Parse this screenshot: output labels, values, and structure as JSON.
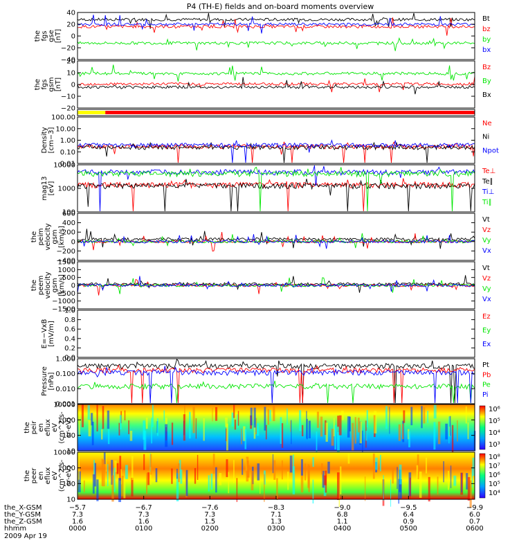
{
  "title": "P4 (TH-E) fields and on-board moments overview",
  "date": "2009 Apr 19",
  "colors": {
    "black": "#000000",
    "red": "#ff0000",
    "green": "#00e600",
    "blue": "#0000ff",
    "yellow": "#ffff00"
  },
  "chart_data": [
    {
      "type": "line",
      "ylabel": [
        "the",
        "fgs",
        "gse",
        "[nT]"
      ],
      "ylim": [
        -40,
        40
      ],
      "ticks": [
        "40",
        "20",
        "0",
        "−20",
        "−40"
      ],
      "series": [
        {
          "name": "Bt",
          "color": "black",
          "base": 28
        },
        {
          "name": "bz",
          "color": "red",
          "base": 16
        },
        {
          "name": "by",
          "color": "green",
          "base": -12
        },
        {
          "name": "bx",
          "color": "blue",
          "base": 20
        }
      ]
    },
    {
      "type": "line",
      "ylabel": [
        "the",
        "fgs",
        "gsm",
        "[nT]"
      ],
      "ylim": [
        -25,
        20
      ],
      "ticks": [
        "20",
        "10",
        "0",
        "−10",
        "−20"
      ],
      "series": [
        {
          "name": "Bz",
          "color": "red",
          "base": -2
        },
        {
          "name": "By",
          "color": "green",
          "base": 8
        },
        {
          "name": "Bx",
          "color": "black",
          "base": -5
        }
      ]
    },
    {
      "type": "bar",
      "ylabel": [],
      "note": "mode bar",
      "segments": [
        {
          "from": 0,
          "to": 0.07,
          "color": "yellow"
        },
        {
          "from": 0.07,
          "to": 1,
          "color": "red"
        }
      ]
    },
    {
      "type": "line",
      "ylabel": [
        "Density",
        "[cm−3]"
      ],
      "ylim": [
        0.01,
        100
      ],
      "scale": "log",
      "ticks": [
        "100.00",
        "10.00",
        "1.00",
        "0.10",
        "0.01"
      ],
      "series": [
        {
          "name": "Ne",
          "color": "red",
          "base": 0.3
        },
        {
          "name": "Ni",
          "color": "black",
          "base": 0.25
        },
        {
          "name": "Npot",
          "color": "blue",
          "base": 0.4
        }
      ]
    },
    {
      "type": "line",
      "ylabel": [
        "mag13",
        "[eV]"
      ],
      "ylim": [
        10,
        15000
      ],
      "scale": "log",
      "ticks": [
        "10000",
        "1000",
        "100"
      ],
      "series": [
        {
          "name": "Te⊥",
          "color": "red",
          "base": 700
        },
        {
          "name": "Te∥",
          "color": "black",
          "base": 600
        },
        {
          "name": "Ti⊥",
          "color": "blue",
          "base": 5000
        },
        {
          "name": "Ti∥",
          "color": "green",
          "base": 4000
        }
      ]
    },
    {
      "type": "line",
      "ylabel": [
        "the",
        "peim",
        "velocity",
        "gsm",
        "[km/s]"
      ],
      "ylim": [
        -400,
        600
      ],
      "ticks": [
        "600",
        "400",
        "200",
        "0",
        "−200",
        "−400"
      ],
      "series": [
        {
          "name": "Vt",
          "color": "black",
          "base": 50
        },
        {
          "name": "Vz",
          "color": "red",
          "base": 0
        },
        {
          "name": "Vy",
          "color": "green",
          "base": 0
        },
        {
          "name": "Vx",
          "color": "blue",
          "base": 0
        }
      ]
    },
    {
      "type": "line",
      "ylabel": [
        "the",
        "peem",
        "velocity",
        "gsm",
        "[km/s]"
      ],
      "ylim": [
        -1500,
        1500
      ],
      "ticks": [
        "1500",
        "1000",
        "500",
        "0",
        "−500",
        "−1000",
        "−1500"
      ],
      "series": [
        {
          "name": "Vt",
          "color": "black",
          "base": 80
        },
        {
          "name": "Vz",
          "color": "red",
          "base": 0
        },
        {
          "name": "Vy",
          "color": "green",
          "base": 0
        },
        {
          "name": "Vx",
          "color": "blue",
          "base": 0
        }
      ]
    },
    {
      "type": "line",
      "ylabel": [
        "E=−VxB",
        "[mV/m]"
      ],
      "ylim": [
        0,
        1
      ],
      "ticks": [
        "1.0",
        "0.8",
        "0.6",
        "0.4",
        "0.2",
        "0.0"
      ],
      "series": [
        {
          "name": "Ez",
          "color": "red"
        },
        {
          "name": "Ey",
          "color": "green"
        },
        {
          "name": "Ex",
          "color": "blue"
        }
      ]
    },
    {
      "type": "line",
      "ylabel": [
        "Pressure",
        "[nPa]"
      ],
      "ylim": [
        0.001,
        2
      ],
      "scale": "log",
      "ticks": [
        "1.000",
        "0.100",
        "0.010",
        "0.001"
      ],
      "series": [
        {
          "name": "Pt",
          "color": "black",
          "base": 0.6
        },
        {
          "name": "Pb",
          "color": "red",
          "base": 0.3
        },
        {
          "name": "Pe",
          "color": "green",
          "base": 0.02
        },
        {
          "name": "Pi",
          "color": "blue",
          "base": 0.2
        }
      ]
    },
    {
      "type": "heatmap",
      "ylabel": [
        "the",
        "peir",
        "en",
        "eflux",
        "eV",
        "(cm^2-s-",
        "sr-eV)"
      ],
      "ylim": [
        10,
        20000
      ],
      "scale": "log",
      "ticks": [
        "10000",
        "1000",
        "100",
        "10"
      ],
      "cbar": [
        "10⁶",
        "10⁵",
        "10⁴",
        "10³"
      ]
    },
    {
      "type": "heatmap",
      "ylabel": [
        "the",
        "peer",
        "en",
        "eflux",
        "eV",
        "(cm^2-s-",
        "sr-eV)"
      ],
      "ylim": [
        10,
        20000
      ],
      "scale": "log",
      "ticks": [
        "10000",
        "1000",
        "100",
        "10"
      ],
      "cbar": [
        "10⁸",
        "10⁷",
        "10⁶",
        "10⁵",
        "10⁴"
      ]
    }
  ],
  "xaxis": {
    "rows": [
      {
        "label": "the_X-GSM",
        "values": [
          "−5.7",
          "−6.7",
          "−7.6",
          "−8.3",
          "−9.0",
          "−9.5",
          "−9.9"
        ]
      },
      {
        "label": "the_Y-GSM",
        "values": [
          "7.3",
          "7.3",
          "7.3",
          "7.1",
          "6.8",
          "6.4",
          "6.0"
        ]
      },
      {
        "label": "the_Z-GSM",
        "values": [
          "1.6",
          "1.6",
          "1.5",
          "1.3",
          "1.1",
          "0.9",
          "0.7"
        ]
      },
      {
        "label": "hhmm",
        "values": [
          "0000",
          "0100",
          "0200",
          "0300",
          "0400",
          "0500",
          "0600"
        ]
      }
    ]
  }
}
